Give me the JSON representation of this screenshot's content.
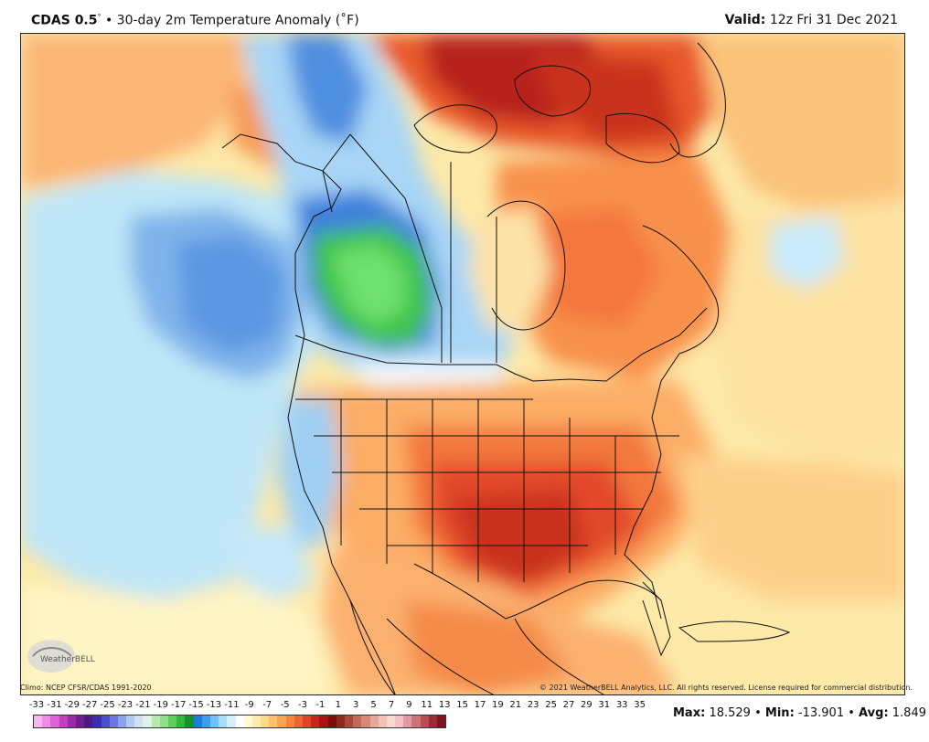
{
  "header": {
    "product": "CDAS 0.5",
    "degree_mark": "°",
    "separator": " • ",
    "description": "30-day 2m Temperature Anomaly (˚F)",
    "valid_label": "Valid:",
    "valid_value": "12z Fri 31 Dec 2021"
  },
  "footer": {
    "climo": "Climo: NCEP CFSR/CDAS 1991-2020",
    "copyright": "© 2021 WeatherBELL Analytics, LLC. All rights reserved. License required for commercial distribution.",
    "logo_text": "WeatherBELL"
  },
  "legend": {
    "ticks": [
      "-33",
      "-31",
      "-29",
      "-27",
      "-25",
      "-23",
      "-21",
      "-19",
      "-17",
      "-15",
      "-13",
      "-11",
      "-9",
      "-7",
      "-5",
      "-3",
      "-1",
      "1",
      "3",
      "5",
      "7",
      "9",
      "11",
      "13",
      "15",
      "17",
      "19",
      "21",
      "23",
      "25",
      "27",
      "29",
      "31",
      "33",
      "35"
    ],
    "colors": [
      "#f7b6f0",
      "#f08ce6",
      "#e060d8",
      "#c23fc0",
      "#9a2aa8",
      "#6f1f8f",
      "#4b1a86",
      "#3a2db0",
      "#4a4fd0",
      "#6a78e0",
      "#8ea2ec",
      "#b4c8f4",
      "#d3e1f7",
      "#dff2ec",
      "#b8eab0",
      "#8edf88",
      "#5ecf5a",
      "#2fb83a",
      "#15922c",
      "#1a7fd6",
      "#3d9df0",
      "#6ec0fa",
      "#a6ddfb",
      "#d4f0fc",
      "#ffffff",
      "#fffad4",
      "#fdecae",
      "#fdd98a",
      "#fcc16c",
      "#fba452",
      "#f7863e",
      "#ef6430",
      "#e04424",
      "#c8261a",
      "#a81410",
      "#7e0c0a",
      "#8c2a1a",
      "#a84a3a",
      "#c46a58",
      "#d88878",
      "#e8a898",
      "#f2c2b6",
      "#f8d8d0",
      "#f3c1c6",
      "#e49aa2",
      "#d0727c",
      "#b84c56",
      "#9c2a36",
      "#7e1420"
    ],
    "stats": {
      "max_label": "Max",
      "max_value": "18.529",
      "min_label": "Min",
      "min_value": "-13.901",
      "avg_label": "Avg",
      "avg_value": "1.849",
      "separator": "•"
    }
  }
}
